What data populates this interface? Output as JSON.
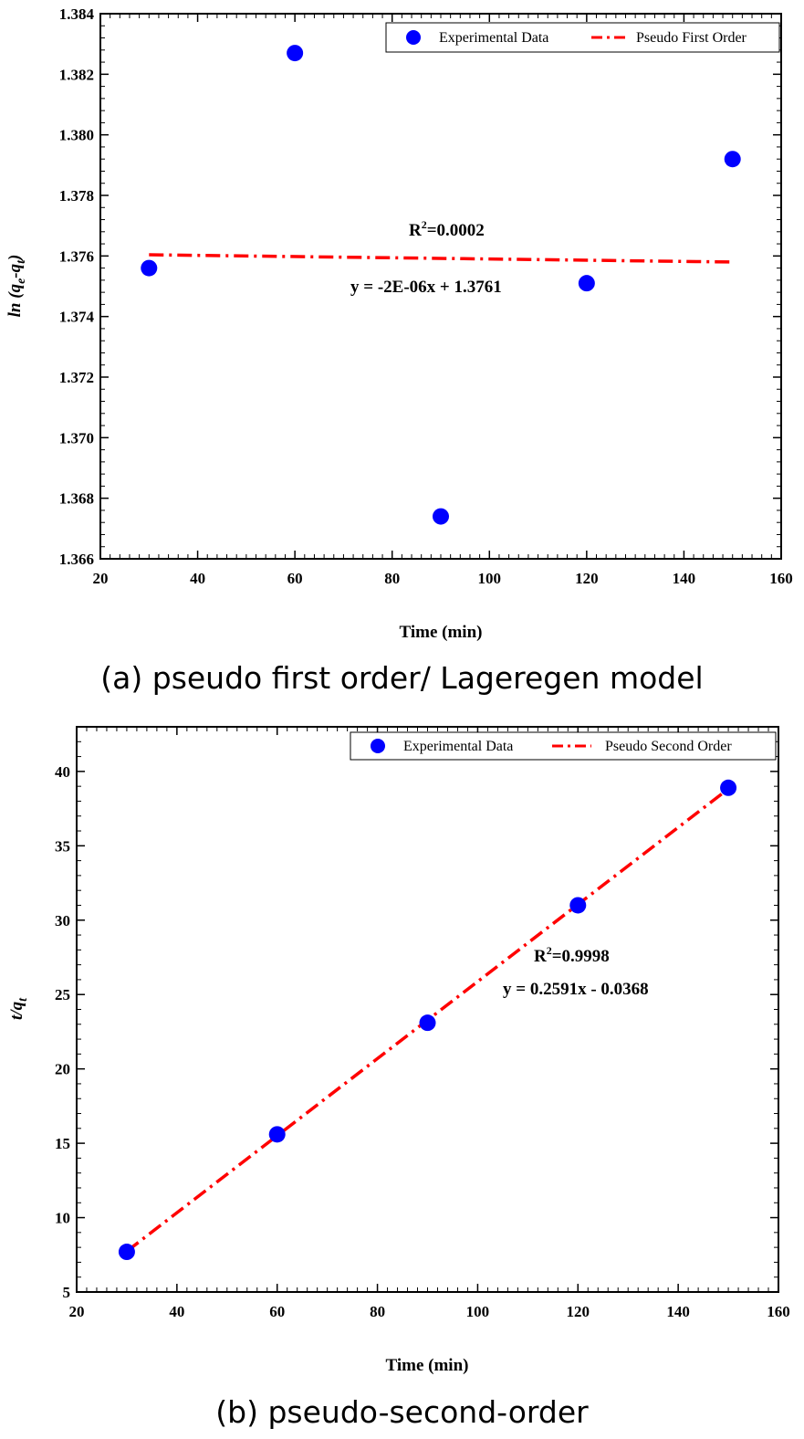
{
  "chart_data": [
    {
      "type": "scatter",
      "caption": "(a) pseudo first order/ Lageregen model",
      "xlabel": "Time (min)",
      "ylabel_main": "ln (q",
      "ylabel_sub1": "e",
      "ylabel_mid": "-q",
      "ylabel_sub2": "t",
      "ylabel_end": ")",
      "xlim": [
        20,
        160
      ],
      "ylim": [
        1.366,
        1.384
      ],
      "xticks": [
        20,
        40,
        60,
        80,
        100,
        120,
        140,
        160
      ],
      "yticks": [
        1.366,
        1.368,
        1.37,
        1.372,
        1.374,
        1.376,
        1.378,
        1.38,
        1.382,
        1.384
      ],
      "ytick_labels": [
        "1.366",
        "1.368",
        "1.370",
        "1.372",
        "1.374",
        "1.376",
        "1.378",
        "1.380",
        "1.382",
        "1.384"
      ],
      "legend": [
        "Experimental Data",
        "Pseudo First Order"
      ],
      "legend_position": "top-right",
      "series": [
        {
          "name": "Experimental Data",
          "x": [
            30,
            60,
            90,
            120,
            150
          ],
          "y": [
            1.3756,
            1.3827,
            1.3674,
            1.3751,
            1.3792
          ]
        }
      ],
      "fit": {
        "name": "Pseudo First Order",
        "slope": -2e-06,
        "intercept": 1.3761,
        "x": [
          30,
          150
        ]
      },
      "r2_text": "=0.0002",
      "r2_label": "R",
      "r2_sup": "2",
      "equation": "y = -2E-06x + 1.3761",
      "marker_color": "#0000ff",
      "line_color": "#ff0000"
    },
    {
      "type": "scatter",
      "caption": "(b) pseudo-second-order",
      "xlabel": "Time (min)",
      "ylabel_main": "t/q",
      "ylabel_sub1": "t",
      "xlim": [
        20,
        160
      ],
      "ylim": [
        5,
        43
      ],
      "xticks": [
        20,
        40,
        60,
        80,
        100,
        120,
        140,
        160
      ],
      "yticks": [
        5,
        10,
        15,
        20,
        25,
        30,
        35,
        40
      ],
      "ytick_labels": [
        "5",
        "10",
        "15",
        "20",
        "25",
        "30",
        "35",
        "40"
      ],
      "legend": [
        "Experimental Data",
        "Pseudo Second Order"
      ],
      "legend_position": "top-right",
      "series": [
        {
          "name": "Experimental Data",
          "x": [
            30,
            60,
            90,
            120,
            150
          ],
          "y": [
            7.7,
            15.6,
            23.1,
            31.0,
            38.9
          ]
        }
      ],
      "fit": {
        "name": "Pseudo Second Order",
        "slope": 0.2591,
        "intercept": -0.0368,
        "x": [
          30,
          150
        ]
      },
      "r2_text": "=0.9998",
      "r2_label": "R",
      "r2_sup": "2",
      "equation": "y = 0.2591x - 0.0368",
      "marker_color": "#0000ff",
      "line_color": "#ff0000"
    }
  ]
}
